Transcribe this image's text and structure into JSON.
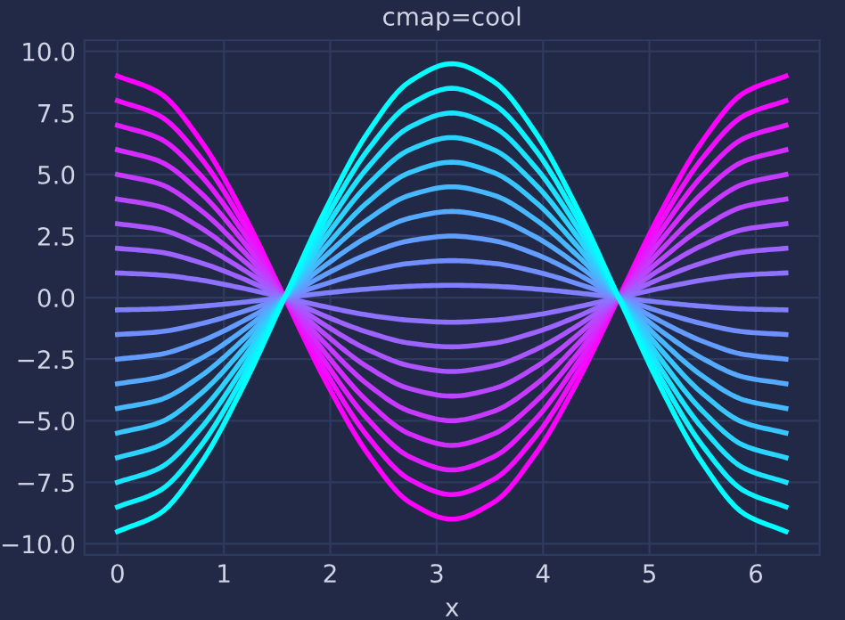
{
  "chart_data": {
    "type": "line",
    "title": "cmap=cool",
    "xlabel": "x",
    "x": [
      0,
      0.393,
      0.785,
      1.178,
      1.571,
      1.963,
      2.356,
      2.749,
      3.142,
      3.534,
      3.927,
      4.32,
      4.712,
      5.105,
      5.498,
      5.89,
      6.283
    ],
    "series": [
      {
        "color": "#ff00ff",
        "values": [
          9,
          8.32,
          6.36,
          3.45,
          0,
          -3.45,
          -6.36,
          -8.32,
          -9,
          -8.32,
          -6.36,
          -3.45,
          0,
          3.45,
          6.36,
          8.32,
          9
        ]
      },
      {
        "color": "#f10eff",
        "values": [
          8,
          7.39,
          5.66,
          3.06,
          0,
          -3.06,
          -5.66,
          -7.39,
          -8,
          -7.39,
          -5.66,
          -3.06,
          0,
          3.06,
          5.66,
          7.39,
          8
        ]
      },
      {
        "color": "#e31cff",
        "values": [
          7,
          6.47,
          4.95,
          2.68,
          0,
          -2.68,
          -4.95,
          -6.47,
          -7,
          -6.47,
          -4.95,
          -2.68,
          0,
          2.68,
          4.95,
          6.47,
          7
        ]
      },
      {
        "color": "#d42bff",
        "values": [
          6,
          5.54,
          4.24,
          2.3,
          0,
          -2.3,
          -4.24,
          -5.54,
          -6,
          -5.54,
          -4.24,
          -2.3,
          0,
          2.3,
          4.24,
          5.54,
          6
        ]
      },
      {
        "color": "#c639ff",
        "values": [
          5,
          4.62,
          3.54,
          1.91,
          0,
          -1.91,
          -3.54,
          -4.62,
          -5,
          -4.62,
          -3.54,
          -1.91,
          0,
          1.91,
          3.54,
          4.62,
          5
        ]
      },
      {
        "color": "#b847ff",
        "values": [
          4,
          3.7,
          2.83,
          1.53,
          0,
          -1.53,
          -2.83,
          -3.7,
          -4,
          -3.7,
          -2.83,
          -1.53,
          0,
          1.53,
          2.83,
          3.7,
          4
        ]
      },
      {
        "color": "#aa55ff",
        "values": [
          3,
          2.77,
          2.12,
          1.15,
          0,
          -1.15,
          -2.12,
          -2.77,
          -3,
          -2.77,
          -2.12,
          -1.15,
          0,
          1.15,
          2.12,
          2.77,
          3
        ]
      },
      {
        "color": "#9c63ff",
        "values": [
          2,
          1.85,
          1.41,
          0.77,
          0,
          -0.77,
          -1.41,
          -1.85,
          -2,
          -1.85,
          -1.41,
          -0.77,
          0,
          0.77,
          1.41,
          1.85,
          2
        ]
      },
      {
        "color": "#8e71ff",
        "values": [
          1,
          0.92,
          0.71,
          0.38,
          0,
          -0.38,
          -0.71,
          -0.92,
          -1,
          -0.92,
          -0.71,
          -0.38,
          0,
          0.38,
          0.71,
          0.92,
          1
        ]
      },
      {
        "color": "#8080ff",
        "values": [
          -0.5,
          -0.46,
          -0.35,
          -0.19,
          0,
          0.19,
          0.35,
          0.46,
          0.5,
          0.46,
          0.35,
          0.19,
          0,
          -0.19,
          -0.35,
          -0.46,
          -0.5
        ]
      },
      {
        "color": "#718eff",
        "values": [
          -1.5,
          -1.39,
          -1.06,
          -0.57,
          0,
          0.57,
          1.06,
          1.39,
          1.5,
          1.39,
          1.06,
          0.57,
          0,
          -0.57,
          -1.06,
          -1.39,
          -1.5
        ]
      },
      {
        "color": "#639cff",
        "values": [
          -2.5,
          -2.31,
          -1.77,
          -0.96,
          0,
          0.96,
          1.77,
          2.31,
          2.5,
          2.31,
          1.77,
          0.96,
          0,
          -0.96,
          -1.77,
          -2.31,
          -2.5
        ]
      },
      {
        "color": "#55aaff",
        "values": [
          -3.5,
          -3.23,
          -2.47,
          -1.34,
          0,
          1.34,
          2.47,
          3.23,
          3.5,
          3.23,
          2.47,
          1.34,
          0,
          -1.34,
          -2.47,
          -3.23,
          -3.5
        ]
      },
      {
        "color": "#47b8ff",
        "values": [
          -4.5,
          -4.16,
          -3.18,
          -1.72,
          0,
          1.72,
          3.18,
          4.16,
          4.5,
          4.16,
          3.18,
          1.72,
          0,
          -1.72,
          -3.18,
          -4.16,
          -4.5
        ]
      },
      {
        "color": "#39c6ff",
        "values": [
          -5.5,
          -5.08,
          -3.89,
          -2.1,
          0,
          2.1,
          3.89,
          5.08,
          5.5,
          5.08,
          3.89,
          2.1,
          0,
          -2.1,
          -3.89,
          -5.08,
          -5.5
        ]
      },
      {
        "color": "#2bd4ff",
        "values": [
          -6.5,
          -6.01,
          -4.6,
          -2.49,
          0,
          2.49,
          4.6,
          6.01,
          6.5,
          6.01,
          4.6,
          2.49,
          0,
          -2.49,
          -4.6,
          -6.01,
          -6.5
        ]
      },
      {
        "color": "#1ce3ff",
        "values": [
          -7.5,
          -6.93,
          -5.3,
          -2.87,
          0,
          2.87,
          5.3,
          6.93,
          7.5,
          6.93,
          5.3,
          2.87,
          0,
          -2.87,
          -5.3,
          -6.93,
          -7.5
        ]
      },
      {
        "color": "#0ef1ff",
        "values": [
          -8.5,
          -7.85,
          -6.01,
          -3.25,
          0,
          3.25,
          6.01,
          7.85,
          8.5,
          7.85,
          6.01,
          3.25,
          0,
          -3.25,
          -6.01,
          -7.85,
          -8.5
        ]
      },
      {
        "color": "#00ffff",
        "values": [
          -9.5,
          -8.78,
          -6.72,
          -3.64,
          0,
          3.64,
          6.72,
          8.78,
          9.5,
          8.78,
          6.72,
          3.64,
          0,
          -3.64,
          -6.72,
          -8.78,
          -9.5
        ]
      }
    ],
    "xlim": [
      -0.31,
      6.6
    ],
    "xticks": [
      0,
      1,
      2,
      3,
      4,
      5,
      6
    ],
    "ylim": [
      -10.45,
      10.45
    ],
    "yticks": [
      {
        "value": -10,
        "label": "−10.0"
      },
      {
        "value": -7.5,
        "label": "−7.5"
      },
      {
        "value": -5,
        "label": "−5.0"
      },
      {
        "value": -2.5,
        "label": "−2.5"
      },
      {
        "value": 0,
        "label": "0.0"
      },
      {
        "value": 2.5,
        "label": "2.5"
      },
      {
        "value": 5,
        "label": "5.0"
      },
      {
        "value": 7.5,
        "label": "7.5"
      },
      {
        "value": 10,
        "label": "10.0"
      }
    ],
    "grid": true,
    "marker": "none",
    "line_style": "solid"
  }
}
